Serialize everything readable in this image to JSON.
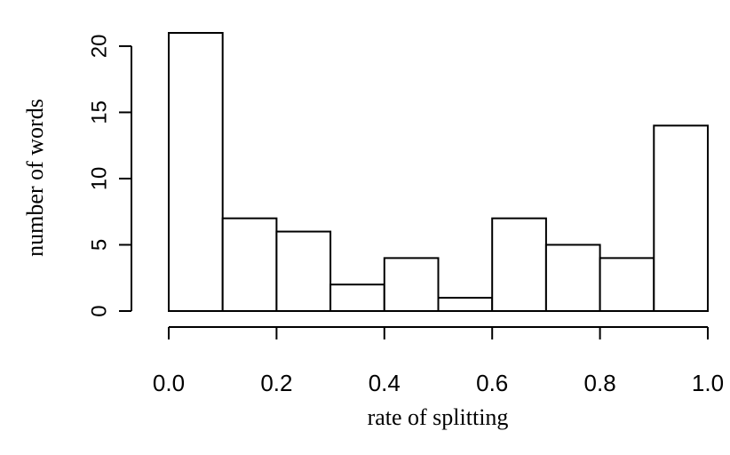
{
  "chart_data": {
    "type": "bar",
    "title": "",
    "xlabel": "rate of splitting",
    "ylabel": "number of words",
    "bins": [
      {
        "x0": 0.0,
        "x1": 0.1,
        "value": 21
      },
      {
        "x0": 0.1,
        "x1": 0.2,
        "value": 7
      },
      {
        "x0": 0.2,
        "x1": 0.3,
        "value": 6
      },
      {
        "x0": 0.3,
        "x1": 0.4,
        "value": 2
      },
      {
        "x0": 0.4,
        "x1": 0.5,
        "value": 4
      },
      {
        "x0": 0.5,
        "x1": 0.6,
        "value": 1
      },
      {
        "x0": 0.6,
        "x1": 0.7,
        "value": 7
      },
      {
        "x0": 0.7,
        "x1": 0.8,
        "value": 5
      },
      {
        "x0": 0.8,
        "x1": 0.9,
        "value": 4
      },
      {
        "x0": 0.9,
        "x1": 1.0,
        "value": 14
      }
    ],
    "xlim": [
      0.0,
      1.0
    ],
    "ylim": [
      0,
      21
    ],
    "x_ticks": [
      0.0,
      0.2,
      0.4,
      0.6,
      0.8,
      1.0
    ],
    "x_tick_labels": [
      "0.0",
      "0.2",
      "0.4",
      "0.6",
      "0.8",
      "1.0"
    ],
    "y_ticks": [
      0,
      5,
      10,
      15,
      20
    ],
    "y_tick_labels": [
      "0",
      "5",
      "10",
      "15",
      "20"
    ],
    "grid": false,
    "legend": "none",
    "bar_fill": "#ffffff",
    "bar_stroke": "#000000"
  }
}
